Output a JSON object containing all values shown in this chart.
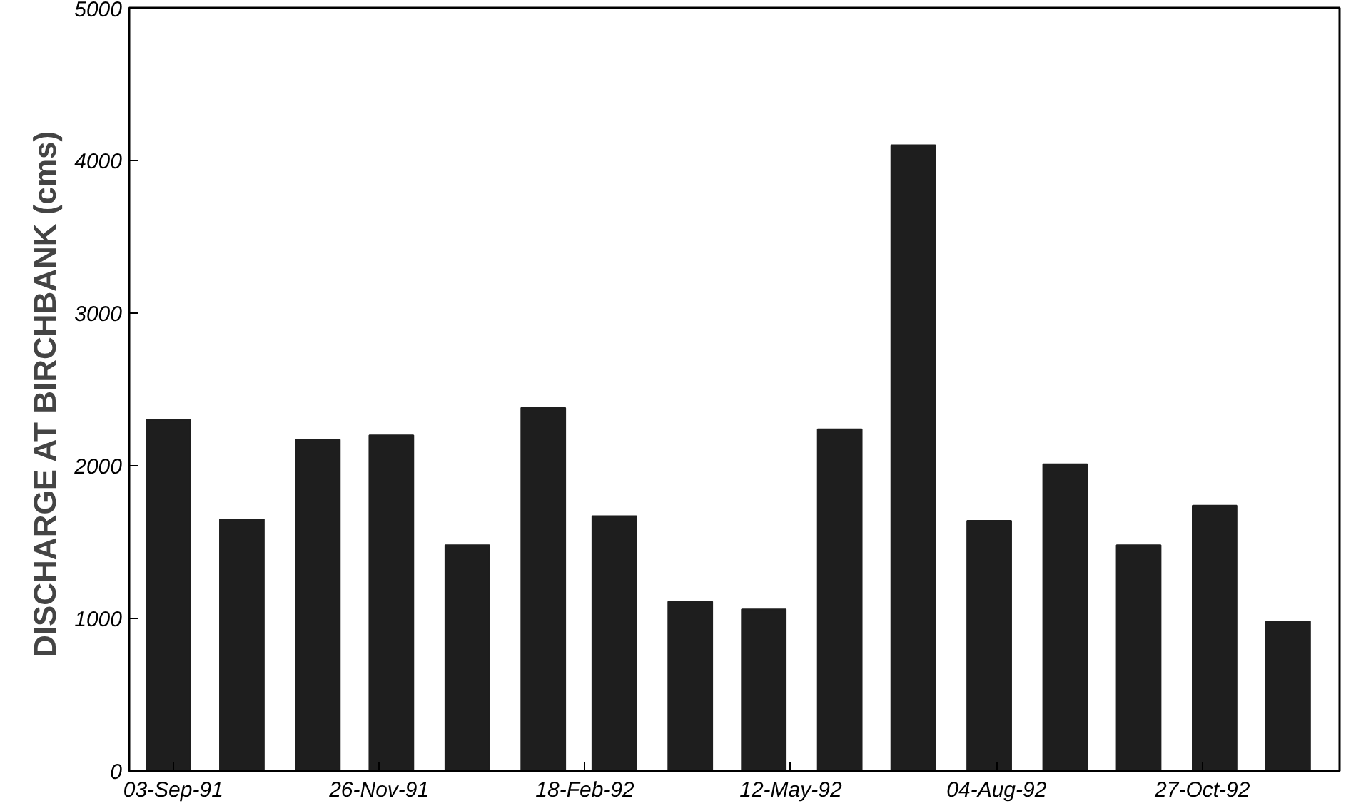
{
  "chart_data": {
    "type": "bar",
    "ylabel": "DISCHARGE AT BIRCHBANK  (cms)",
    "x": [
      "1991-09",
      "1991-10",
      "1991-11",
      "1991-12",
      "1992-01",
      "1992-02",
      "1992-03",
      "1992-04",
      "1992-05",
      "1992-06",
      "1992-07",
      "1992-08",
      "1992-09",
      "1992-10",
      "1992-11",
      "1992-12"
    ],
    "values": [
      2300,
      1650,
      2170,
      2200,
      1480,
      2380,
      1670,
      1110,
      1060,
      2240,
      4100,
      1640,
      2010,
      1480,
      1740,
      980
    ],
    "color": "#1e1e1e",
    "xlim": [
      "1991-08-16",
      "1992-12-22"
    ],
    "xticks": [
      {
        "value": "1991-09-03",
        "label": "03-Sep-91"
      },
      {
        "value": "1991-11-26",
        "label": "26-Nov-91"
      },
      {
        "value": "1992-02-18",
        "label": "18-Feb-92"
      },
      {
        "value": "1992-05-12",
        "label": "12-May-92"
      },
      {
        "value": "1992-08-04",
        "label": "04-Aug-92"
      },
      {
        "value": "1992-10-27",
        "label": "27-Oct-92"
      }
    ],
    "ylim": [
      0,
      5000
    ],
    "yticks": [
      0,
      1000,
      2000,
      3000,
      4000,
      5000
    ],
    "grid": false
  }
}
